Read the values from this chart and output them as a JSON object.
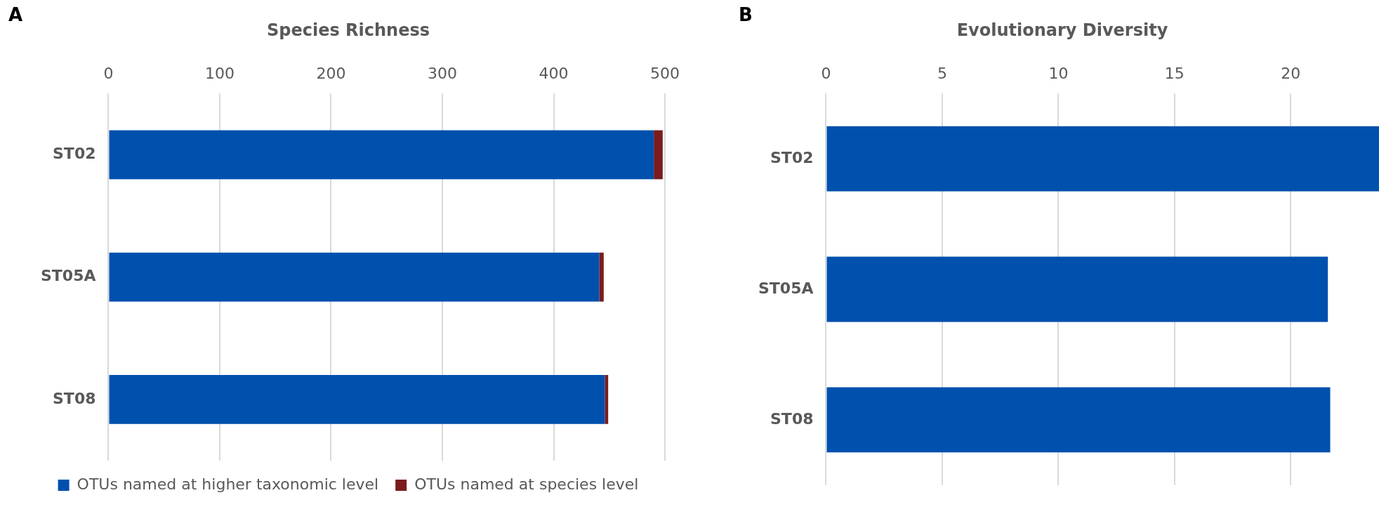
{
  "chart_data": [
    {
      "type": "bar",
      "title": "Species Richness",
      "annotations": [
        "A"
      ],
      "orientation": "horizontal",
      "stacked": true,
      "categories": [
        "ST02",
        "ST05A",
        "ST08"
      ],
      "series": [
        {
          "name": "OTUs named at higher taxonomic level",
          "color": "#0050ae",
          "values": [
            490,
            441,
            446
          ]
        },
        {
          "name": "OTUs named at species level",
          "color": "#7b1c1c",
          "values": [
            8,
            4,
            3
          ]
        }
      ],
      "xlim": [
        0,
        500
      ],
      "xticks": [
        0,
        100,
        200,
        300,
        400,
        500
      ],
      "grid": "x",
      "legend": "bottom"
    },
    {
      "type": "bar",
      "title": "Evolutionary Diversity",
      "annotations": [
        "B"
      ],
      "orientation": "horizontal",
      "categories": [
        "ST02",
        "ST05A",
        "ST08"
      ],
      "series": [
        {
          "color": "#0050ae",
          "values": [
            23.8,
            21.6,
            21.7
          ]
        }
      ],
      "xlim": [
        0,
        23.8
      ],
      "xticks": [
        0,
        5,
        10,
        15,
        20
      ],
      "grid": "x"
    }
  ]
}
